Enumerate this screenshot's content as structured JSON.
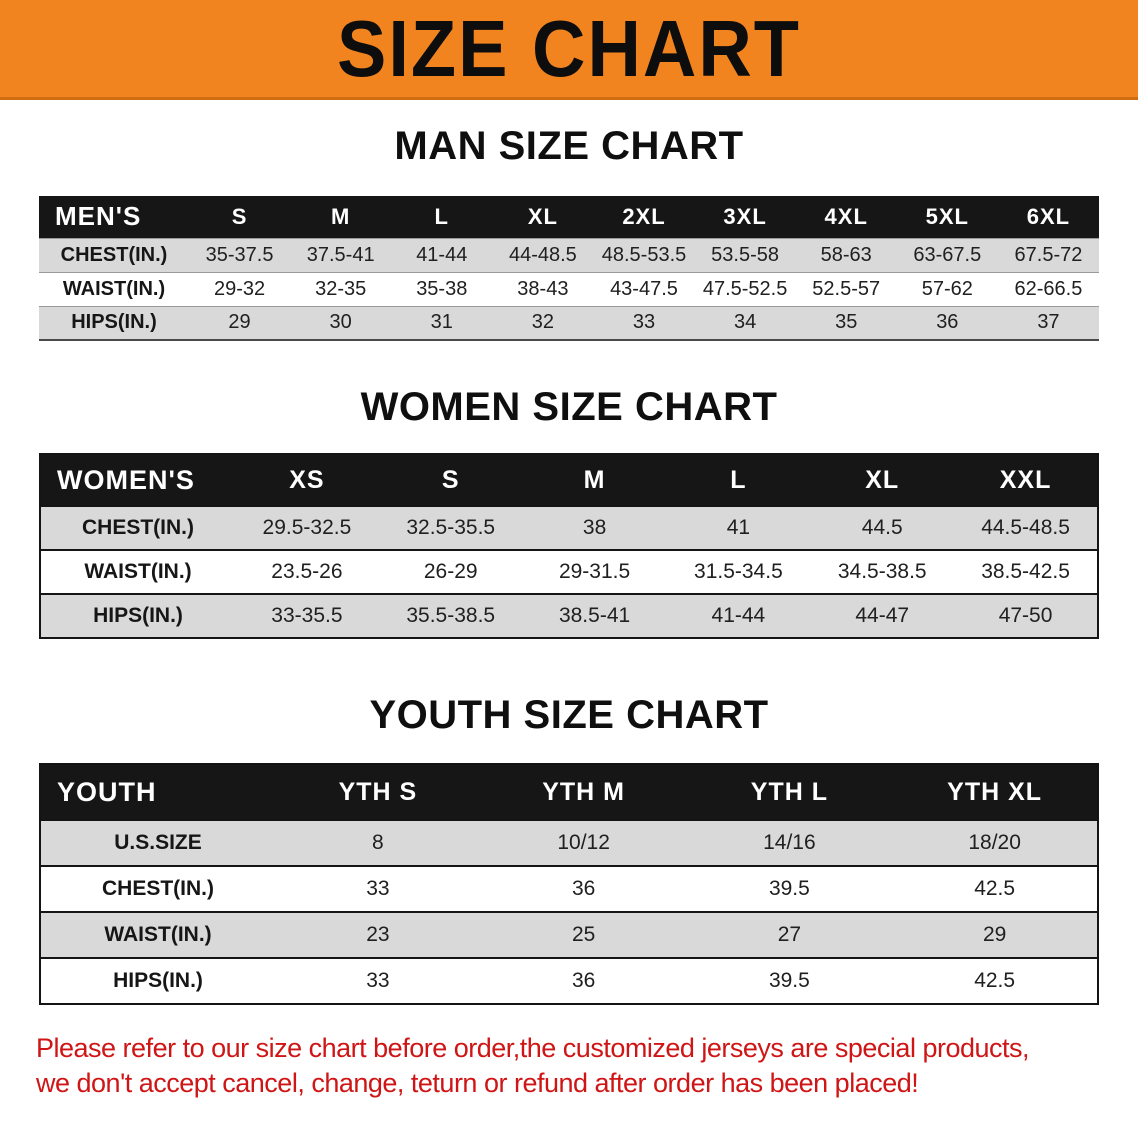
{
  "banner": {
    "title": "SIZE CHART"
  },
  "men": {
    "heading": "MAN SIZE CHART",
    "table": {
      "header": [
        "MEN'S",
        "S",
        "M",
        "L",
        "XL",
        "2XL",
        "3XL",
        "4XL",
        "5XL",
        "6XL"
      ],
      "rows": [
        [
          "CHEST(IN.)",
          "35-37.5",
          "37.5-41",
          "41-44",
          "44-48.5",
          "48.5-53.5",
          "53.5-58",
          "58-63",
          "63-67.5",
          "67.5-72"
        ],
        [
          "WAIST(IN.)",
          "29-32",
          "32-35",
          "35-38",
          "38-43",
          "43-47.5",
          "47.5-52.5",
          "52.5-57",
          "57-62",
          "62-66.5"
        ],
        [
          "HIPS(IN.)",
          "29",
          "30",
          "31",
          "32",
          "33",
          "34",
          "35",
          "36",
          "37"
        ]
      ]
    }
  },
  "women": {
    "heading": "WOMEN SIZE CHART",
    "table": {
      "header": [
        "WOMEN'S",
        "XS",
        "S",
        "M",
        "L",
        "XL",
        "XXL"
      ],
      "rows": [
        [
          "CHEST(IN.)",
          "29.5-32.5",
          "32.5-35.5",
          "38",
          "41",
          "44.5",
          "44.5-48.5"
        ],
        [
          "WAIST(IN.)",
          "23.5-26",
          "26-29",
          "29-31.5",
          "31.5-34.5",
          "34.5-38.5",
          "38.5-42.5"
        ],
        [
          "HIPS(IN.)",
          "33-35.5",
          "35.5-38.5",
          "38.5-41",
          "41-44",
          "44-47",
          "47-50"
        ]
      ]
    }
  },
  "youth": {
    "heading": "YOUTH SIZE CHART",
    "table": {
      "header": [
        "YOUTH",
        "YTH S",
        "YTH M",
        "YTH L",
        "YTH XL"
      ],
      "rows": [
        [
          "U.S.SIZE",
          "8",
          "10/12",
          "14/16",
          "18/20"
        ],
        [
          "CHEST(IN.)",
          "33",
          "36",
          "39.5",
          "42.5"
        ],
        [
          "WAIST(IN.)",
          "23",
          "25",
          "27",
          "29"
        ],
        [
          "HIPS(IN.)",
          "33",
          "36",
          "39.5",
          "42.5"
        ]
      ]
    }
  },
  "footer": {
    "lines": [
      "Please refer to our size chart before order,the customized jerseys are special products,",
      "we don't accept cancel, change, teturn or refund after order has been placed!"
    ]
  },
  "colors": {
    "banner_orange": "#f28420",
    "table_header_black": "#161616",
    "row_stripe_gray": "#d9d9d9",
    "warning_red": "#cf1515"
  }
}
